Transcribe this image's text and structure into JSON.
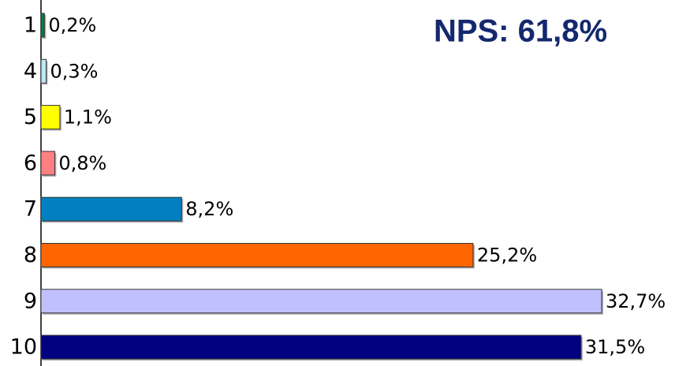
{
  "chart_data": {
    "type": "bar",
    "orientation": "horizontal",
    "title": "NPS: 61,8%",
    "categories": [
      "1",
      "4",
      "5",
      "6",
      "7",
      "8",
      "9",
      "10"
    ],
    "values": [
      0.2,
      0.3,
      1.1,
      0.8,
      8.2,
      25.2,
      32.7,
      31.5
    ],
    "value_labels": [
      "0,2%",
      "0,3%",
      "1,1%",
      "0,8%",
      "8,2%",
      "25,2%",
      "32,7%",
      "31,5%"
    ],
    "colors": [
      "#008040",
      "#b8ecf4",
      "#ffff00",
      "#ff8080",
      "#0080c0",
      "#ff6600",
      "#c0c0ff",
      "#000080"
    ],
    "xlim": [
      0,
      35
    ]
  }
}
